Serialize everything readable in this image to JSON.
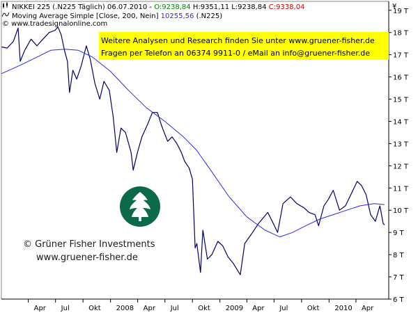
{
  "header": {
    "line1_prefix": "NIKKEI 225 (.N225  Täglich) 06.07.2010 -",
    "line1_open": "O:9238,84",
    "line1_hl": "H:9351,11 L:9238,84",
    "line1_close": "C:9338,04",
    "line2_label": "Moving Average Simple [Close, 200, Nein]",
    "line2_value": "10255,56",
    "line2_suffix": "(.N225)",
    "line3": "© www.tradesignalonline.com",
    "icon1": "candle-icon",
    "icon2": "wave-icon"
  },
  "info_box": {
    "line1": "Weitere Analysen und Research finden Sie unter www.gruener-fisher.de",
    "line2": "Fragen per Telefon an 06374 9911-0 / eMail an info@gruener-fisher.de",
    "background": "#ffff00"
  },
  "watermark": {
    "line1": "© Grüner Fisher Investments",
    "line2": "www.gruener-fisher.de",
    "logo_color": "#0b6a4a"
  },
  "chart_data": {
    "type": "line",
    "currency_symbol": "¥",
    "y_axis_side": "right",
    "y_ticks": [
      "19 T",
      "18 T",
      "17 T",
      "16 T",
      "15 T",
      "14 T",
      "13 T",
      "12 T",
      "11 T",
      "10 T",
      "9 T",
      "8 T",
      "7 T",
      "6 T"
    ],
    "y_tick_values": [
      19000,
      18000,
      17000,
      16000,
      15000,
      14000,
      13000,
      12000,
      11000,
      10000,
      9000,
      8000,
      7000,
      6000
    ],
    "ylim": [
      6000,
      19400
    ],
    "x_ticks": [
      "Apr",
      "Jul",
      "Okt",
      "2008",
      "Apr",
      "Jul",
      "Okt",
      "2009",
      "Apr",
      "Jul",
      "Okt",
      "2010",
      "Apr"
    ],
    "x_tick_dates": [
      "2007-04-01",
      "2007-07-01",
      "2007-10-01",
      "2008-01-01",
      "2008-04-01",
      "2008-07-01",
      "2008-10-01",
      "2009-01-01",
      "2009-04-01",
      "2009-07-01",
      "2009-10-01",
      "2010-01-01",
      "2010-04-01"
    ],
    "xlim": [
      "2007-01-01",
      "2010-07-15"
    ],
    "grid": false,
    "colors": {
      "price": "#000066",
      "moving_average": "#2a2adf"
    },
    "series": [
      {
        "name": "NIKKEI 225 (.N225)",
        "style": "price",
        "points": [
          [
            "2007-01-02",
            17350
          ],
          [
            "2007-01-20",
            17300
          ],
          [
            "2007-02-10",
            17600
          ],
          [
            "2007-02-26",
            18200
          ],
          [
            "2007-03-05",
            16700
          ],
          [
            "2007-03-20",
            17200
          ],
          [
            "2007-04-10",
            17700
          ],
          [
            "2007-04-30",
            17400
          ],
          [
            "2007-05-20",
            17700
          ],
          [
            "2007-06-10",
            18000
          ],
          [
            "2007-06-30",
            18100
          ],
          [
            "2007-07-09",
            18250
          ],
          [
            "2007-07-20",
            17900
          ],
          [
            "2007-07-31",
            17200
          ],
          [
            "2007-08-10",
            16700
          ],
          [
            "2007-08-17",
            15300
          ],
          [
            "2007-08-28",
            16300
          ],
          [
            "2007-09-10",
            15900
          ],
          [
            "2007-09-25",
            16500
          ],
          [
            "2007-10-12",
            17400
          ],
          [
            "2007-10-25",
            16800
          ],
          [
            "2007-11-10",
            15700
          ],
          [
            "2007-11-26",
            15000
          ],
          [
            "2007-12-10",
            15800
          ],
          [
            "2007-12-28",
            15400
          ],
          [
            "2008-01-10",
            14200
          ],
          [
            "2008-01-22",
            12600
          ],
          [
            "2008-02-05",
            13700
          ],
          [
            "2008-02-20",
            13500
          ],
          [
            "2008-03-10",
            12600
          ],
          [
            "2008-03-17",
            11800
          ],
          [
            "2008-03-31",
            12600
          ],
          [
            "2008-04-15",
            13300
          ],
          [
            "2008-05-05",
            13900
          ],
          [
            "2008-05-20",
            14400
          ],
          [
            "2008-06-06",
            14400
          ],
          [
            "2008-06-20",
            13800
          ],
          [
            "2008-07-10",
            13100
          ],
          [
            "2008-07-25",
            13300
          ],
          [
            "2008-08-10",
            13000
          ],
          [
            "2008-08-25",
            12600
          ],
          [
            "2008-09-05",
            12200
          ],
          [
            "2008-09-20",
            11900
          ],
          [
            "2008-10-01",
            11400
          ],
          [
            "2008-10-10",
            8300
          ],
          [
            "2008-10-16",
            8500
          ],
          [
            "2008-10-28",
            7200
          ],
          [
            "2008-11-05",
            9100
          ],
          [
            "2008-11-20",
            7800
          ],
          [
            "2008-12-05",
            8000
          ],
          [
            "2008-12-25",
            8600
          ],
          [
            "2009-01-10",
            8400
          ],
          [
            "2009-01-28",
            7900
          ],
          [
            "2009-02-15",
            7600
          ],
          [
            "2009-03-10",
            7100
          ],
          [
            "2009-03-25",
            8500
          ],
          [
            "2009-04-15",
            8900
          ],
          [
            "2009-05-10",
            9400
          ],
          [
            "2009-06-10",
            9900
          ],
          [
            "2009-06-25",
            9500
          ],
          [
            "2009-07-13",
            9000
          ],
          [
            "2009-07-31",
            10300
          ],
          [
            "2009-08-25",
            10600
          ],
          [
            "2009-09-15",
            10300
          ],
          [
            "2009-10-10",
            10100
          ],
          [
            "2009-10-26",
            9900
          ],
          [
            "2009-11-15",
            9800
          ],
          [
            "2009-11-27",
            9300
          ],
          [
            "2009-12-15",
            10200
          ],
          [
            "2009-12-30",
            10500
          ],
          [
            "2010-01-15",
            10900
          ],
          [
            "2010-02-05",
            10000
          ],
          [
            "2010-02-25",
            10200
          ],
          [
            "2010-03-15",
            10700
          ],
          [
            "2010-04-05",
            11300
          ],
          [
            "2010-04-20",
            11100
          ],
          [
            "2010-05-05",
            10700
          ],
          [
            "2010-05-20",
            9800
          ],
          [
            "2010-06-05",
            9500
          ],
          [
            "2010-06-20",
            10200
          ],
          [
            "2010-07-01",
            9400
          ],
          [
            "2010-07-06",
            9338
          ]
        ]
      },
      {
        "name": "Moving Average Simple [Close, 200, Nein]",
        "style": "moving_average",
        "points": [
          [
            "2007-01-02",
            16150
          ],
          [
            "2007-03-01",
            16500
          ],
          [
            "2007-05-01",
            16900
          ],
          [
            "2007-06-15",
            17200
          ],
          [
            "2007-08-01",
            17250
          ],
          [
            "2007-09-15",
            17200
          ],
          [
            "2007-11-01",
            16900
          ],
          [
            "2008-01-01",
            16250
          ],
          [
            "2008-03-01",
            15400
          ],
          [
            "2008-05-01",
            14600
          ],
          [
            "2008-07-01",
            14000
          ],
          [
            "2008-09-01",
            13300
          ],
          [
            "2008-10-15",
            12700
          ],
          [
            "2008-12-01",
            11800
          ],
          [
            "2009-02-01",
            10600
          ],
          [
            "2009-04-01",
            9700
          ],
          [
            "2009-06-01",
            9100
          ],
          [
            "2009-07-20",
            8800
          ],
          [
            "2009-09-01",
            9000
          ],
          [
            "2009-10-15",
            9300
          ],
          [
            "2009-12-01",
            9600
          ],
          [
            "2010-01-15",
            9800
          ],
          [
            "2010-03-01",
            10000
          ],
          [
            "2010-04-15",
            10200
          ],
          [
            "2010-06-01",
            10300
          ],
          [
            "2010-07-06",
            10256
          ]
        ]
      }
    ]
  }
}
